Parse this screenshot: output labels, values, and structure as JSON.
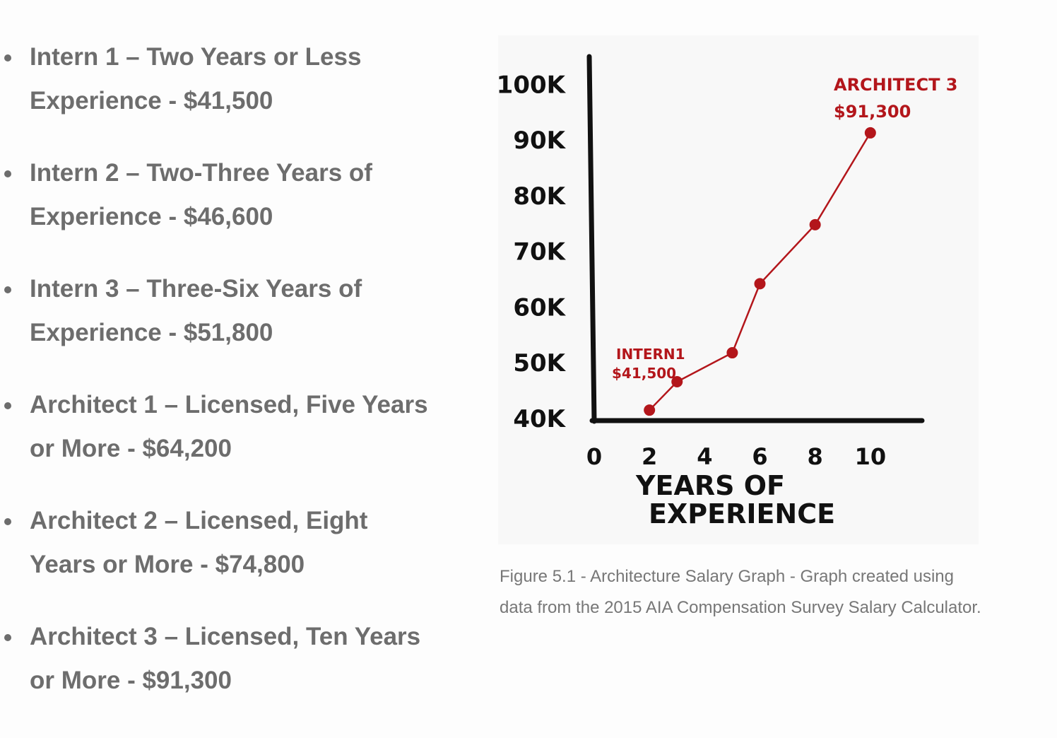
{
  "list": {
    "items": [
      "Intern 1 – Two Years or Less Experience - $41,500",
      "Intern 2 – Two-Three Years of Experience - $46,600",
      "Intern 3 – Three-Six Years of Experience - $51,800",
      "Architect 1 – Licensed, Five Years or More - $64,200",
      "Architect 2 – Licensed, Eight Years or More - $74,800",
      "Architect 3 – Licensed, Ten Years or More - $91,300"
    ]
  },
  "chart_data": {
    "type": "line",
    "x": [
      2,
      3,
      5,
      6,
      8,
      10
    ],
    "values": [
      41500,
      46600,
      51800,
      64200,
      74800,
      91300
    ],
    "color": "#b3161b",
    "xlim": [
      0,
      12
    ],
    "ylim": [
      40000,
      105000
    ],
    "xticks": [
      0,
      2,
      4,
      6,
      8,
      10
    ],
    "yticks": [
      {
        "value": 40000,
        "label": "40K"
      },
      {
        "value": 50000,
        "label": "50K"
      },
      {
        "value": 60000,
        "label": "60K"
      },
      {
        "value": 70000,
        "label": "70K"
      },
      {
        "value": 80000,
        "label": "80K"
      },
      {
        "value": 90000,
        "label": "90K"
      },
      {
        "value": 100000,
        "label": "100K"
      }
    ],
    "xlabel": [
      "YEARS OF",
      "EXPERIENCE"
    ],
    "annotations": [
      "INTERN1",
      "$41,500",
      "ARCHITECT 3",
      "$91,300"
    ]
  },
  "caption": "Figure 5.1 - Architecture Salary Graph - Graph created using data from the 2015 AIA Compensation Survey Salary Calculator."
}
